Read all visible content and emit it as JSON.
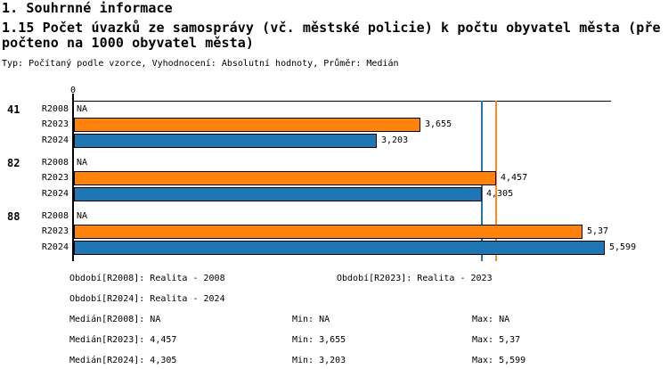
{
  "header": {
    "section_title": "1. Souhrnné informace",
    "title_line1": "1.15 Počet úvazků ze samosprávy (vč. městské policie) k počtu obyvatel města (pře",
    "title_line2": "počteno na 1000 obyvatel města)",
    "meta": "Typ: Počítaný podle vzorce, Vyhodnocení: Absolutní hodnoty, Průměr: Medián"
  },
  "chart_data": {
    "type": "bar",
    "orientation": "horizontal",
    "x_axis": {
      "zero_label": "0",
      "range": [
        0,
        5.67
      ],
      "gridlines": false
    },
    "series_colors": {
      "R2023": "#ff820d",
      "R2024": "#1f76b4"
    },
    "groups": [
      {
        "category": "41",
        "bars": [
          {
            "series": "R2008",
            "value": null,
            "label": "NA"
          },
          {
            "series": "R2023",
            "value": 3.655,
            "label": "3,655"
          },
          {
            "series": "R2024",
            "value": 3.203,
            "label": "3,203"
          }
        ]
      },
      {
        "category": "82",
        "bars": [
          {
            "series": "R2008",
            "value": null,
            "label": "NA"
          },
          {
            "series": "R2023",
            "value": 4.457,
            "label": "4,457"
          },
          {
            "series": "R2024",
            "value": 4.305,
            "label": "4,305"
          }
        ]
      },
      {
        "category": "88",
        "bars": [
          {
            "series": "R2008",
            "value": null,
            "label": "NA"
          },
          {
            "series": "R2023",
            "value": 5.37,
            "label": "5,37"
          },
          {
            "series": "R2024",
            "value": 5.599,
            "label": "5,599"
          }
        ]
      }
    ],
    "median_lines": [
      {
        "series": "R2024",
        "value": 4.305,
        "color": "#1f76b4"
      },
      {
        "series": "R2023",
        "value": 4.457,
        "color": "#ff8c1a"
      }
    ]
  },
  "footer": {
    "rows": [
      {
        "cells": [
          "Období[R2008]: Realita - 2008",
          "Období[R2023]: Realita - 2023"
        ]
      },
      {
        "cells": [
          "Období[R2024]: Realita - 2024"
        ]
      },
      {
        "cells": [
          "Medián[R2008]: NA",
          "Min: NA",
          "Max: NA"
        ]
      },
      {
        "cells": [
          "Medián[R2023]: 4,457",
          "Min: 3,655",
          "Max: 5,37"
        ]
      },
      {
        "cells": [
          "Medián[R2024]: 4,305",
          "Min: 3,203",
          "Max: 5,599"
        ]
      }
    ]
  }
}
